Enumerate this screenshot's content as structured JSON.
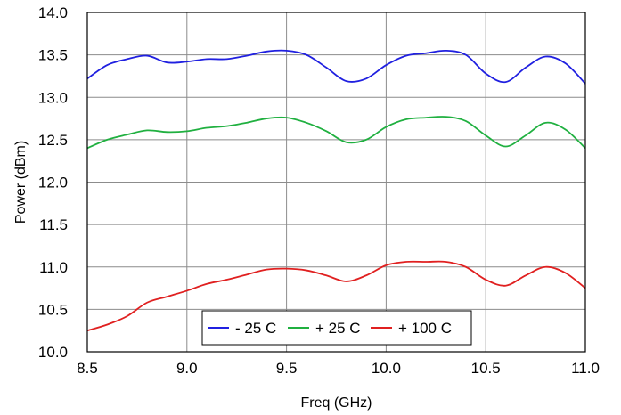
{
  "chart_data": {
    "type": "line",
    "title": "",
    "xlabel": "Freq (GHz)",
    "ylabel": "Power (dBm)",
    "xlim": [
      8.5,
      11.0
    ],
    "ylim": [
      10.0,
      14.0
    ],
    "x_ticks": [
      8.5,
      9.0,
      9.5,
      10.0,
      10.5,
      11.0
    ],
    "x_tick_labels": [
      "8.5",
      "9.0",
      "9.5",
      "10.0",
      "10.5",
      "11.0"
    ],
    "y_ticks": [
      10.0,
      10.5,
      11.0,
      11.5,
      12.0,
      12.5,
      13.0,
      13.5,
      14.0
    ],
    "y_tick_labels": [
      "10.0",
      "10.5",
      "11.0",
      "11.5",
      "12.0",
      "12.5",
      "13.0",
      "13.5",
      "14.0"
    ],
    "grid": true,
    "legend_position": "bottom-center",
    "x": [
      8.5,
      8.6,
      8.7,
      8.8,
      8.9,
      9.0,
      9.1,
      9.2,
      9.3,
      9.4,
      9.5,
      9.6,
      9.7,
      9.8,
      9.9,
      10.0,
      10.1,
      10.2,
      10.3,
      10.4,
      10.5,
      10.6,
      10.7,
      10.8,
      10.9,
      11.0
    ],
    "series": [
      {
        "name": "- 25 C",
        "color": "#2020e0",
        "values": [
          13.22,
          13.38,
          13.45,
          13.49,
          13.41,
          13.42,
          13.45,
          13.45,
          13.49,
          13.54,
          13.55,
          13.5,
          13.35,
          13.19,
          13.22,
          13.38,
          13.49,
          13.52,
          13.55,
          13.5,
          13.28,
          13.18,
          13.35,
          13.48,
          13.4,
          13.16
        ]
      },
      {
        "name": "+ 25 C",
        "color": "#20b040",
        "values": [
          12.4,
          12.5,
          12.56,
          12.61,
          12.59,
          12.6,
          12.64,
          12.66,
          12.7,
          12.75,
          12.76,
          12.7,
          12.6,
          12.47,
          12.5,
          12.65,
          12.74,
          12.76,
          12.77,
          12.72,
          12.55,
          12.42,
          12.55,
          12.7,
          12.62,
          12.4
        ]
      },
      {
        "name": "+ 100 C",
        "color": "#e02020",
        "values": [
          10.25,
          10.32,
          10.42,
          10.58,
          10.65,
          10.72,
          10.8,
          10.85,
          10.91,
          10.97,
          10.98,
          10.96,
          10.9,
          10.83,
          10.9,
          11.02,
          11.06,
          11.06,
          11.06,
          11.0,
          10.85,
          10.78,
          10.9,
          11.0,
          10.93,
          10.75
        ]
      }
    ]
  }
}
